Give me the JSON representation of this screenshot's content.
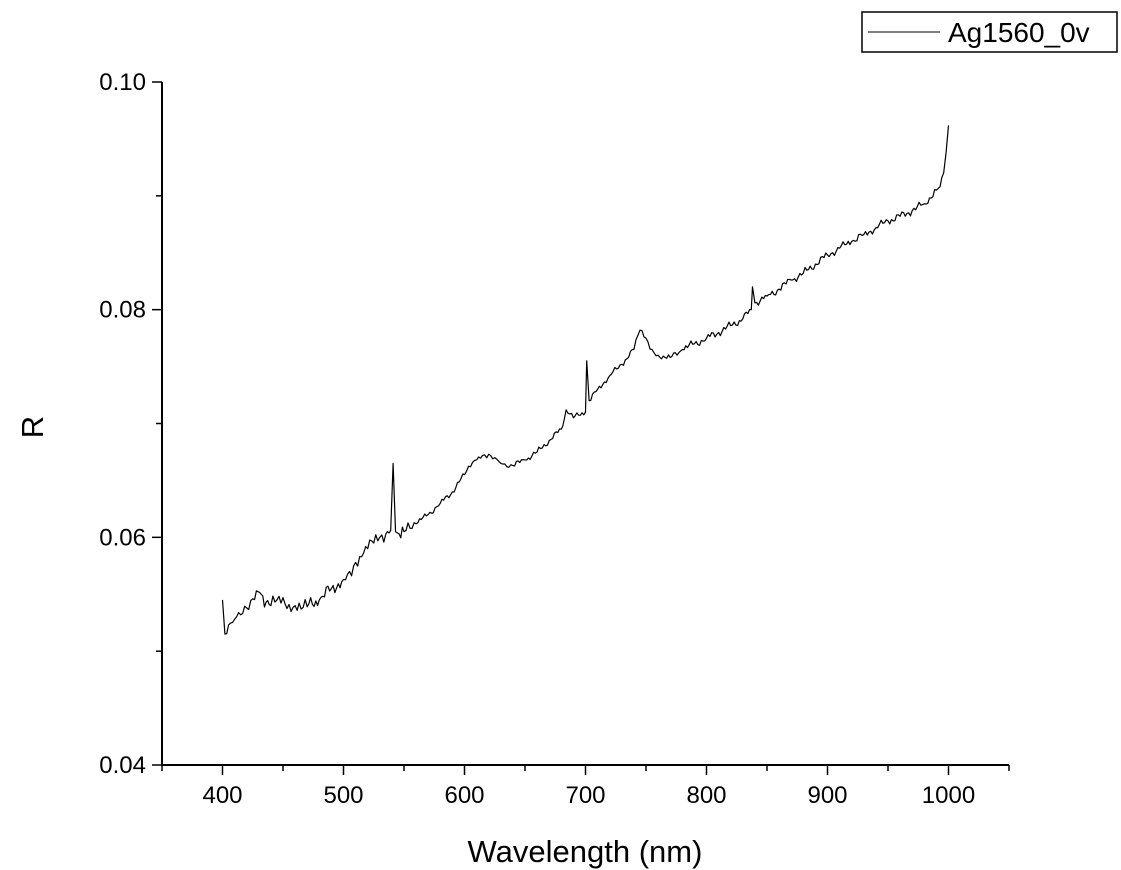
{
  "chart_data": {
    "type": "line",
    "title": "",
    "xlabel": "Wavelength (nm)",
    "ylabel": "R",
    "xlim": [
      350,
      1050
    ],
    "ylim": [
      0.04,
      0.1
    ],
    "x_ticks": [
      400,
      500,
      600,
      700,
      800,
      900,
      1000
    ],
    "x_tick_labels": [
      "400",
      "500",
      "600",
      "700",
      "800",
      "900",
      "1000"
    ],
    "y_ticks": [
      0.04,
      0.06,
      0.08,
      0.1
    ],
    "y_tick_labels": [
      "0.04",
      "0.06",
      "0.08",
      "0.10"
    ],
    "grid": false,
    "legend_position": "top-right",
    "line_color": "#000000",
    "series": [
      {
        "name": "Ag1560_0v",
        "x": [
          400,
          402,
          405,
          410,
          415,
          420,
          425,
          428,
          432,
          436,
          440,
          445,
          450,
          455,
          460,
          465,
          470,
          480,
          490,
          500,
          505,
          510,
          515,
          520,
          525,
          530,
          535,
          539,
          541,
          543,
          546,
          550,
          555,
          560,
          570,
          580,
          590,
          600,
          605,
          610,
          615,
          620,
          625,
          630,
          635,
          640,
          650,
          660,
          670,
          680,
          684,
          690,
          700,
          701,
          703,
          710,
          720,
          730,
          740,
          745,
          750,
          755,
          760,
          770,
          780,
          790,
          800,
          810,
          820,
          830,
          837,
          838,
          840,
          850,
          860,
          870,
          880,
          890,
          900,
          910,
          920,
          930,
          940,
          950,
          960,
          970,
          980,
          990,
          993,
          996,
          998,
          1000
        ],
        "y": [
          0.0545,
          0.0515,
          0.0523,
          0.0528,
          0.0532,
          0.0538,
          0.0546,
          0.0553,
          0.055,
          0.0543,
          0.054,
          0.0545,
          0.0547,
          0.0541,
          0.054,
          0.0537,
          0.0539,
          0.0545,
          0.0555,
          0.0563,
          0.057,
          0.0578,
          0.0583,
          0.059,
          0.0595,
          0.06,
          0.0603,
          0.0606,
          0.0665,
          0.0605,
          0.0603,
          0.0605,
          0.0608,
          0.0612,
          0.062,
          0.063,
          0.064,
          0.0655,
          0.0662,
          0.0668,
          0.0672,
          0.0673,
          0.067,
          0.0665,
          0.0662,
          0.0663,
          0.0668,
          0.0675,
          0.0685,
          0.0695,
          0.0712,
          0.0705,
          0.071,
          0.0755,
          0.072,
          0.073,
          0.0742,
          0.0752,
          0.0765,
          0.0782,
          0.0775,
          0.0765,
          0.076,
          0.0758,
          0.0765,
          0.077,
          0.0775,
          0.078,
          0.0786,
          0.0792,
          0.08,
          0.082,
          0.0806,
          0.0812,
          0.0818,
          0.0826,
          0.0832,
          0.084,
          0.0848,
          0.0854,
          0.086,
          0.0866,
          0.0872,
          0.0878,
          0.0882,
          0.0887,
          0.0893,
          0.0905,
          0.0908,
          0.092,
          0.0938,
          0.0962
        ]
      }
    ]
  }
}
